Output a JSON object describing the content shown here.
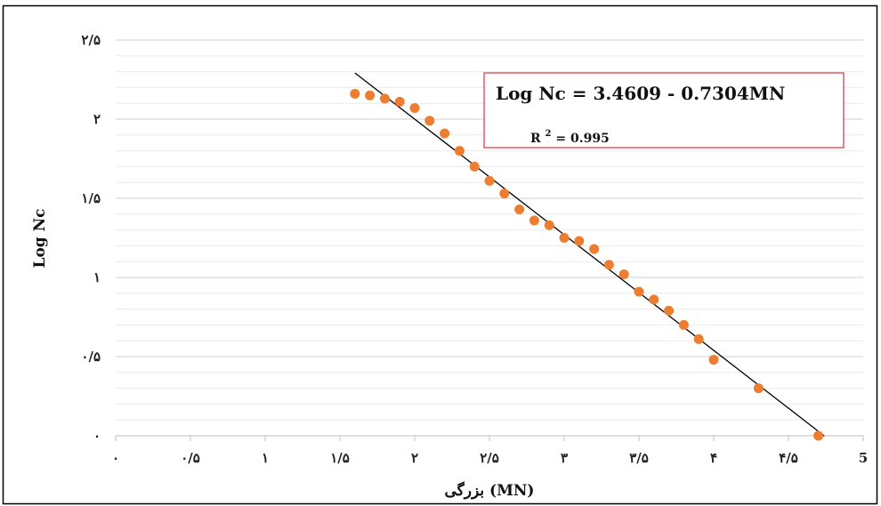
{
  "chart_data": {
    "type": "scatter",
    "xlabel": "بزرگی (MN)",
    "ylabel": "Log Nc",
    "xlim": [
      0,
      5
    ],
    "ylim": [
      0,
      2.5
    ],
    "x_ticks": [
      {
        "value": 0,
        "label": "۰"
      },
      {
        "value": 0.5,
        "label": "۰/۵"
      },
      {
        "value": 1,
        "label": "۱"
      },
      {
        "value": 1.5,
        "label": "۱/۵"
      },
      {
        "value": 2,
        "label": "۲"
      },
      {
        "value": 2.5,
        "label": "۲/۵"
      },
      {
        "value": 3,
        "label": "۳"
      },
      {
        "value": 3.5,
        "label": "۳/۵"
      },
      {
        "value": 4,
        "label": "۴"
      },
      {
        "value": 4.5,
        "label": "۴/۵"
      },
      {
        "value": 5,
        "label": "5"
      }
    ],
    "y_ticks": [
      {
        "value": 0,
        "label": "۰"
      },
      {
        "value": 0.5,
        "label": "۰/۵"
      },
      {
        "value": 1,
        "label": "۱"
      },
      {
        "value": 1.5,
        "label": "۱/۵"
      },
      {
        "value": 2,
        "label": "۲"
      },
      {
        "value": 2.5,
        "label": "۲/۵"
      }
    ],
    "grid": {
      "major_y": true,
      "minor_y": true,
      "x": false
    },
    "points": {
      "x": [
        1.6,
        1.7,
        1.8,
        1.9,
        2.0,
        2.1,
        2.2,
        2.3,
        2.4,
        2.5,
        2.6,
        2.7,
        2.8,
        2.9,
        3.0,
        3.1,
        3.2,
        3.3,
        3.4,
        3.5,
        3.6,
        3.7,
        3.8,
        3.9,
        4.0,
        4.3,
        4.7
      ],
      "y": [
        2.16,
        2.15,
        2.13,
        2.11,
        2.07,
        1.99,
        1.91,
        1.8,
        1.7,
        1.61,
        1.53,
        1.43,
        1.36,
        1.33,
        1.25,
        1.23,
        1.18,
        1.08,
        1.02,
        0.91,
        0.86,
        0.79,
        0.7,
        0.61,
        0.48,
        0.3,
        0.0
      ]
    },
    "trendline": {
      "intercept": 3.4609,
      "slope": -0.7304,
      "x_range": [
        1.6,
        4.74
      ]
    },
    "annotation": {
      "equation_main": "Log Nc = 3.4609 - 0.7304MN",
      "r2_prefix": "R",
      "r2_exponent": "2",
      "r2_value": "= 0.995"
    },
    "colors": {
      "points": "#ED7D31",
      "trendline": "#000000",
      "gridline": "#d9d9d9",
      "annotation_border": "#E04050",
      "frame": "#000000"
    }
  }
}
